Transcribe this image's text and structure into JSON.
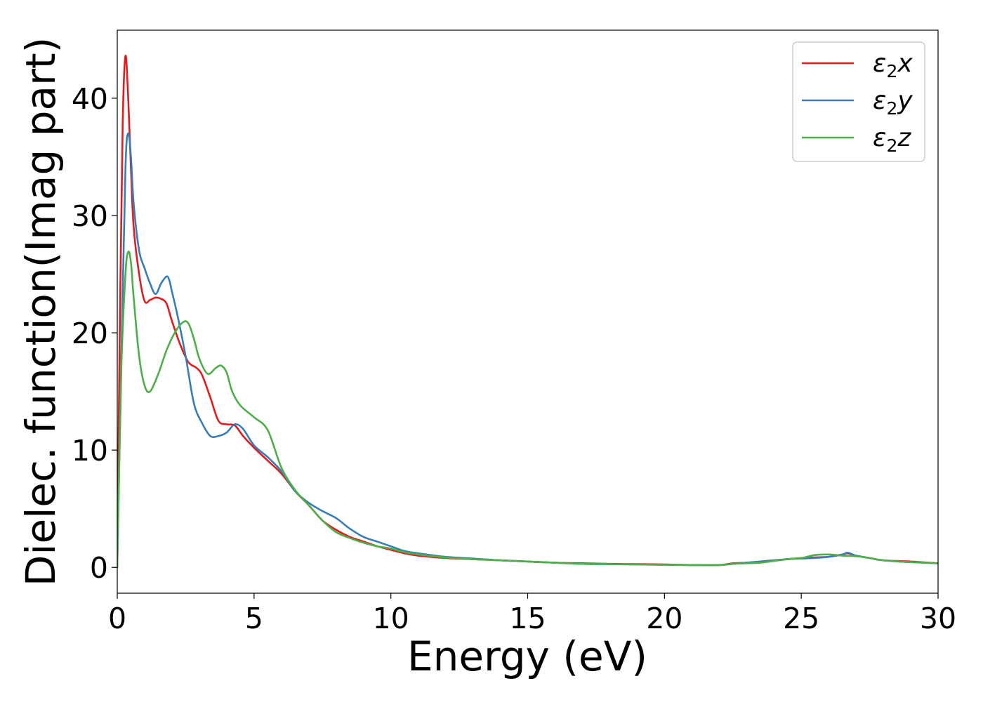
{
  "chart_data": {
    "type": "line",
    "title": "",
    "xlabel": "Energy (eV)",
    "ylabel": "Dielec. function(Imag part)",
    "xlim": [
      0,
      30
    ],
    "ylim": [
      -2.2,
      45.8
    ],
    "xticks": [
      0,
      5,
      10,
      15,
      20,
      25,
      30
    ],
    "yticks": [
      0,
      10,
      20,
      30,
      40
    ],
    "grid": false,
    "legend_position": "top-right",
    "series": [
      {
        "name": "ε₂x",
        "label_base": "ε",
        "label_sub": "2",
        "label_axis": "x",
        "color": "#e41a1c",
        "x": [
          0,
          0.1,
          0.2,
          0.3,
          0.4,
          0.5,
          0.6,
          0.8,
          1.0,
          1.2,
          1.4,
          1.6,
          1.8,
          2.0,
          2.3,
          2.6,
          2.9,
          3.1,
          3.4,
          3.7,
          4.0,
          4.3,
          4.6,
          5.0,
          5.5,
          6.0,
          6.5,
          7.0,
          7.5,
          8.0,
          8.5,
          9.0,
          9.5,
          10.0,
          10.5,
          11.0,
          12.0,
          13.0,
          14.0,
          15.0,
          16.0,
          17.0,
          18.0,
          19.0,
          20.0,
          21.0,
          22.0,
          22.5,
          23.0,
          23.5,
          24.0,
          24.5,
          25.0,
          25.5,
          26.0,
          26.5,
          26.7,
          27.0,
          27.5,
          28.0,
          29.0,
          30.0
        ],
        "y": [
          0,
          22,
          38,
          43.6,
          40,
          34,
          29,
          25,
          22.7,
          22.8,
          23.0,
          22.9,
          22.5,
          21,
          19,
          17.5,
          17,
          16.4,
          14.5,
          12.5,
          12.2,
          12.1,
          11.2,
          10.2,
          9.1,
          8,
          6.5,
          5.3,
          4.0,
          3.2,
          2.6,
          2.2,
          1.8,
          1.5,
          1.2,
          1.0,
          0.8,
          0.7,
          0.6,
          0.5,
          0.4,
          0.35,
          0.3,
          0.28,
          0.25,
          0.2,
          0.2,
          0.35,
          0.4,
          0.5,
          0.6,
          0.7,
          0.8,
          0.85,
          0.9,
          1.1,
          1.2,
          1.0,
          0.8,
          0.6,
          0.5,
          0.35
        ]
      },
      {
        "name": "ε₂y",
        "label_base": "ε",
        "label_sub": "2",
        "label_axis": "y",
        "color": "#377eb8",
        "x": [
          0,
          0.15,
          0.3,
          0.4,
          0.5,
          0.6,
          0.8,
          1.0,
          1.2,
          1.4,
          1.6,
          1.8,
          1.9,
          2.0,
          2.2,
          2.5,
          2.8,
          3.1,
          3.4,
          3.7,
          4.0,
          4.3,
          4.6,
          5.0,
          5.5,
          6.0,
          6.5,
          7.0,
          7.5,
          8.0,
          8.5,
          9.0,
          9.5,
          10.0,
          10.5,
          11.0,
          12.0,
          13.0,
          14.0,
          15.0,
          16.0,
          17.0,
          18.0,
          19.0,
          20.0,
          21.0,
          22.0,
          22.5,
          23.0,
          23.5,
          24.0,
          24.5,
          25.0,
          25.5,
          26.0,
          26.5,
          26.7,
          27.0,
          27.5,
          28.0,
          29.0,
          30.0
        ],
        "y": [
          0,
          18,
          34,
          37,
          35,
          31,
          27,
          25.5,
          24.2,
          23.3,
          24.2,
          24.8,
          24.5,
          23.5,
          21.5,
          18,
          14,
          12.3,
          11.2,
          11.2,
          11.5,
          12.2,
          11.8,
          10.4,
          9.4,
          8.2,
          6.5,
          5.5,
          4.8,
          4.2,
          3.3,
          2.6,
          2.2,
          1.8,
          1.4,
          1.2,
          0.9,
          0.75,
          0.6,
          0.5,
          0.4,
          0.3,
          0.28,
          0.25,
          0.22,
          0.2,
          0.2,
          0.3,
          0.4,
          0.5,
          0.6,
          0.7,
          0.75,
          0.8,
          0.9,
          1.1,
          1.25,
          1.0,
          0.8,
          0.6,
          0.45,
          0.35
        ]
      },
      {
        "name": "ε₂z",
        "label_base": "ε",
        "label_sub": "2",
        "label_axis": "z",
        "color": "#4daf4a",
        "x": [
          0,
          0.15,
          0.3,
          0.4,
          0.5,
          0.6,
          0.8,
          1.0,
          1.2,
          1.5,
          1.8,
          2.1,
          2.4,
          2.6,
          2.8,
          3.0,
          3.3,
          3.6,
          3.8,
          4.0,
          4.2,
          4.5,
          5.0,
          5.5,
          6.0,
          6.5,
          7.0,
          7.5,
          8.0,
          8.5,
          9.0,
          9.5,
          10.0,
          10.5,
          11.0,
          12.0,
          13.0,
          14.0,
          15.0,
          16.0,
          17.0,
          18.0,
          19.0,
          20.0,
          21.0,
          22.0,
          22.5,
          23.0,
          23.5,
          24.0,
          24.5,
          25.0,
          25.5,
          26.0,
          26.5,
          27.0,
          27.5,
          28.0,
          29.0,
          30.0
        ],
        "y": [
          0,
          17,
          25,
          26.9,
          26,
          23,
          18,
          15.5,
          15,
          16.5,
          18.5,
          20,
          20.9,
          20.8,
          19.5,
          17.8,
          16.5,
          17,
          17.2,
          16.6,
          15,
          13.8,
          12.8,
          11.7,
          8.5,
          6.6,
          5.3,
          4.0,
          3.0,
          2.5,
          2.1,
          1.8,
          1.6,
          1.3,
          1.1,
          0.85,
          0.7,
          0.6,
          0.5,
          0.4,
          0.3,
          0.28,
          0.25,
          0.22,
          0.2,
          0.2,
          0.3,
          0.35,
          0.4,
          0.55,
          0.7,
          0.8,
          1.05,
          1.1,
          1.0,
          0.95,
          0.8,
          0.6,
          0.45,
          0.35
        ]
      }
    ]
  }
}
